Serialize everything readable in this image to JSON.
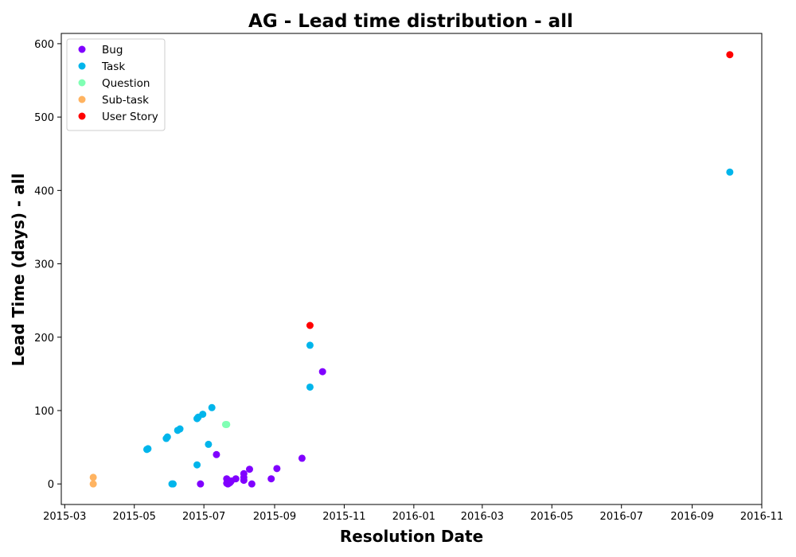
{
  "chart_data": {
    "type": "scatter",
    "title": "AG - Lead time distribution - all",
    "xlabel": "Resolution Date",
    "ylabel": "Lead Time (days) - all",
    "xlim": [
      "2015-02-26",
      "2016-11-01"
    ],
    "ylim": [
      -28,
      614
    ],
    "x_ticks": [
      "2015-03",
      "2015-05",
      "2015-07",
      "2015-09",
      "2015-11",
      "2016-01",
      "2016-03",
      "2016-05",
      "2016-07",
      "2016-09",
      "2016-11"
    ],
    "y_ticks": [
      0,
      100,
      200,
      300,
      400,
      500,
      600
    ],
    "grid": false,
    "legend_position": "upper-left",
    "series": [
      {
        "name": "Bug",
        "color": "#8000ff",
        "points": [
          {
            "x": "2015-06-28",
            "y": 0
          },
          {
            "x": "2015-07-12",
            "y": 40
          },
          {
            "x": "2015-07-21",
            "y": 7
          },
          {
            "x": "2015-07-21",
            "y": 1
          },
          {
            "x": "2015-07-22",
            "y": 0
          },
          {
            "x": "2015-07-23",
            "y": 1
          },
          {
            "x": "2015-07-24",
            "y": 2
          },
          {
            "x": "2015-07-25",
            "y": 4
          },
          {
            "x": "2015-07-29",
            "y": 7
          },
          {
            "x": "2015-08-05",
            "y": 14
          },
          {
            "x": "2015-08-05",
            "y": 9
          },
          {
            "x": "2015-08-05",
            "y": 5
          },
          {
            "x": "2015-08-10",
            "y": 20
          },
          {
            "x": "2015-08-12",
            "y": 0
          },
          {
            "x": "2015-08-29",
            "y": 7
          },
          {
            "x": "2015-09-03",
            "y": 21
          },
          {
            "x": "2015-09-25",
            "y": 35
          },
          {
            "x": "2015-10-13",
            "y": 153
          }
        ]
      },
      {
        "name": "Task",
        "color": "#00b5eb",
        "points": [
          {
            "x": "2015-05-12",
            "y": 47
          },
          {
            "x": "2015-05-13",
            "y": 48
          },
          {
            "x": "2015-05-29",
            "y": 62
          },
          {
            "x": "2015-05-30",
            "y": 64
          },
          {
            "x": "2015-06-03",
            "y": 0
          },
          {
            "x": "2015-06-04",
            "y": 0
          },
          {
            "x": "2015-06-08",
            "y": 73
          },
          {
            "x": "2015-06-10",
            "y": 75
          },
          {
            "x": "2015-06-25",
            "y": 26
          },
          {
            "x": "2015-06-25",
            "y": 89
          },
          {
            "x": "2015-06-26",
            "y": 91
          },
          {
            "x": "2015-06-30",
            "y": 95
          },
          {
            "x": "2015-07-05",
            "y": 54
          },
          {
            "x": "2015-07-08",
            "y": 104
          },
          {
            "x": "2015-10-02",
            "y": 189
          },
          {
            "x": "2015-10-02",
            "y": 132
          },
          {
            "x": "2016-10-04",
            "y": 425
          }
        ]
      },
      {
        "name": "Question",
        "color": "#80ffb4",
        "points": [
          {
            "x": "2015-07-20",
            "y": 81
          },
          {
            "x": "2015-07-21",
            "y": 81
          }
        ]
      },
      {
        "name": "Sub-task",
        "color": "#ffb360",
        "points": [
          {
            "x": "2015-03-26",
            "y": 9
          },
          {
            "x": "2015-03-26",
            "y": 0
          }
        ]
      },
      {
        "name": "User Story",
        "color": "#ff0000",
        "points": [
          {
            "x": "2015-10-02",
            "y": 216
          },
          {
            "x": "2016-10-04",
            "y": 585
          }
        ]
      }
    ]
  }
}
